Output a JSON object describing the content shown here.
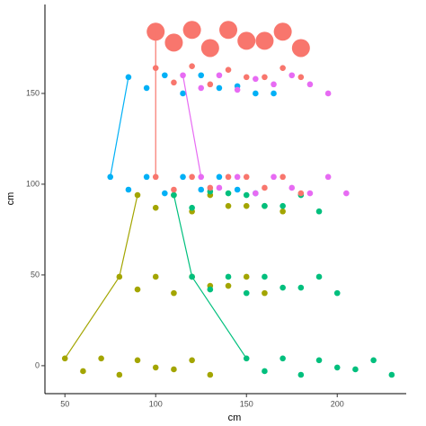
{
  "chart_data": {
    "type": "scatter",
    "xlabel": "cm",
    "ylabel": "cm",
    "xlim": [
      39,
      238
    ],
    "ylim": [
      -15.4,
      199
    ],
    "xticks": [
      50,
      100,
      150,
      200
    ],
    "yticks": [
      0,
      50,
      100,
      150
    ],
    "grid": false,
    "series": [
      {
        "geom": "point",
        "color": "#A3A500",
        "x": [
          50,
          60,
          70,
          80,
          90,
          100,
          110,
          120,
          130,
          80,
          90,
          100,
          110,
          120,
          130,
          140,
          150,
          160,
          90,
          100,
          110,
          120,
          130,
          140,
          150,
          160,
          170
        ],
        "values": [
          4,
          -3,
          4,
          -5,
          3,
          -1,
          -2,
          3,
          -5,
          49,
          42,
          49,
          40,
          49,
          44,
          44,
          49,
          40,
          94,
          87,
          94,
          85,
          94,
          88,
          88,
          88,
          85
        ]
      },
      {
        "geom": "point",
        "color": "#00BF7D",
        "x": [
          150,
          160,
          170,
          180,
          190,
          200,
          210,
          220,
          230,
          120,
          130,
          140,
          150,
          160,
          170,
          180,
          190,
          200,
          110,
          120,
          130,
          140,
          150,
          160,
          170,
          180,
          190
        ],
        "values": [
          4,
          -3,
          4,
          -5,
          3,
          -1,
          -2,
          3,
          -5,
          49,
          42,
          49,
          40,
          49,
          43,
          43,
          49,
          40,
          94,
          87,
          96,
          95,
          94,
          88,
          88,
          94,
          85
        ]
      },
      {
        "geom": "point",
        "color": "#00B0F6",
        "x": [
          75,
          85,
          95,
          105,
          115,
          125,
          135,
          145,
          155,
          85,
          95,
          105,
          115,
          125,
          135,
          145,
          155,
          165
        ],
        "values": [
          104,
          97,
          104,
          95,
          104,
          97,
          104,
          97,
          95,
          159,
          153,
          160,
          150,
          160,
          153,
          154,
          150,
          150
        ]
      },
      {
        "geom": "point",
        "color": "#E76BF3",
        "x": [
          125,
          135,
          145,
          155,
          165,
          175,
          185,
          195,
          205,
          115,
          125,
          135,
          145,
          155,
          165,
          175,
          185,
          195
        ],
        "values": [
          104,
          98,
          104,
          95,
          104,
          98,
          95,
          104,
          95,
          160,
          153,
          160,
          152,
          158,
          155,
          160,
          155,
          150
        ]
      },
      {
        "geom": "point",
        "color": "#F8766D",
        "x": [
          100,
          110,
          120,
          130,
          140,
          150,
          160,
          170,
          180,
          100,
          110,
          120,
          130,
          140,
          150,
          160,
          170,
          180
        ],
        "values": [
          104,
          97,
          104,
          98,
          104,
          104,
          98,
          104,
          95,
          164,
          156,
          165,
          155,
          163,
          159,
          159,
          164,
          159
        ]
      },
      {
        "geom": "point",
        "color": "#F8766D",
        "x": [
          100,
          110,
          120,
          130,
          140,
          150,
          160,
          170,
          180
        ],
        "values": [
          184,
          178,
          185,
          175,
          185,
          179,
          179,
          184,
          175
        ],
        "sizes": [
          10,
          10,
          10,
          10,
          10,
          10,
          10,
          10,
          10
        ]
      },
      {
        "geom": "line",
        "color": "#A3A500",
        "x": [
          50,
          80,
          90
        ],
        "values": [
          4,
          49,
          94
        ]
      },
      {
        "geom": "line",
        "color": "#00BF7D",
        "x": [
          110,
          120,
          150
        ],
        "values": [
          94,
          49,
          4
        ]
      },
      {
        "geom": "line",
        "color": "#00B0F6",
        "x": [
          75,
          85
        ],
        "values": [
          104,
          159
        ]
      },
      {
        "geom": "line",
        "color": "#E76BF3",
        "x": [
          115,
          125
        ],
        "values": [
          160,
          104
        ]
      },
      {
        "geom": "line",
        "color": "#F8766D",
        "x": [
          100,
          100,
          100
        ],
        "values": [
          104,
          164,
          184
        ]
      }
    ]
  }
}
